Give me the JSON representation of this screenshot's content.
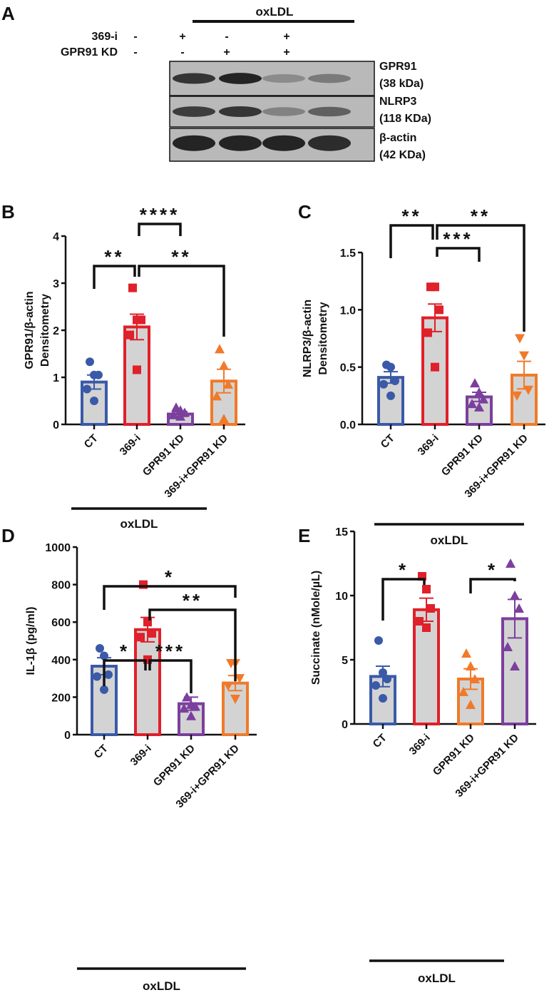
{
  "panel_a": {
    "letter": "A",
    "treatment_label": "oxLDL",
    "row_labels": [
      "369-i",
      "GPR91 KD"
    ],
    "lanes": [
      {
        "inhibitor": "-",
        "kd": "-"
      },
      {
        "inhibitor": "+",
        "kd": "-"
      },
      {
        "inhibitor": "-",
        "kd": "+"
      },
      {
        "inhibitor": "+",
        "kd": "+"
      }
    ],
    "blots": [
      {
        "name": "GPR91",
        "size": "(38 kDa)",
        "intensity": [
          0.85,
          0.95,
          0.35,
          0.45
        ]
      },
      {
        "name": "NLRP3",
        "size": "(118 KDa)",
        "intensity": [
          0.8,
          0.85,
          0.4,
          0.6
        ]
      },
      {
        "name": "β-actin",
        "size": "(42 KDa)",
        "intensity": [
          0.95,
          0.95,
          0.95,
          0.9
        ]
      }
    ]
  },
  "chart_data": [
    {
      "id": "B",
      "letter": "B",
      "type": "bar",
      "ylabel": [
        "GPR91/β-actin",
        "Densitometry"
      ],
      "ylim": [
        0,
        4
      ],
      "yticks": [
        "0",
        "1",
        "2",
        "3",
        "4"
      ],
      "ytick_values": [
        0,
        1,
        2,
        3,
        4
      ],
      "categories": [
        "CT",
        "369-i",
        "GPR91 KD",
        "369-i+GPR91 KD"
      ],
      "colors": [
        "#3a5aa8",
        "#e0202a",
        "#7b3f9e",
        "#f07a2a"
      ],
      "markers": [
        "circle",
        "square",
        "triangle",
        "triangle"
      ],
      "means": [
        0.9,
        2.07,
        0.22,
        0.92
      ],
      "sem": [
        0.15,
        0.27,
        0.05,
        0.25
      ],
      "points": [
        [
          1.33,
          1.05,
          1.05,
          0.75,
          0.5
        ],
        [
          2.9,
          2.22,
          2.22,
          1.9,
          1.16
        ],
        [
          0.36,
          0.3,
          0.25,
          0.2,
          0.17
        ],
        [
          1.6,
          1.25,
          0.85,
          0.6,
          0.12
        ]
      ],
      "comparisons": [
        {
          "a": 0,
          "b": 1,
          "label": "**"
        },
        {
          "a": 1,
          "b": 3,
          "label": "**"
        },
        {
          "a": 1,
          "b": 2,
          "label": "****"
        }
      ],
      "group_label": "oxLDL"
    },
    {
      "id": "C",
      "letter": "C",
      "type": "bar",
      "ylabel": [
        "NLRP3/β-actin",
        "Densitometry"
      ],
      "ylim": [
        0,
        1.5
      ],
      "yticks": [
        "0.0",
        "0.5",
        "1.0",
        "1.5"
      ],
      "ytick_values": [
        0,
        0.5,
        1.0,
        1.5
      ],
      "categories": [
        "CT",
        "369-i",
        "GPR91 KD",
        "369-i+GPR91 KD"
      ],
      "colors": [
        "#3a5aa8",
        "#e0202a",
        "#7b3f9e",
        "#f07a2a"
      ],
      "markers": [
        "circle",
        "square",
        "triangle",
        "triangle-down"
      ],
      "means": [
        0.41,
        0.93,
        0.24,
        0.43
      ],
      "sem": [
        0.05,
        0.12,
        0.04,
        0.12
      ],
      "points": [
        [
          0.52,
          0.5,
          0.38,
          0.35,
          0.25
        ],
        [
          1.2,
          1.2,
          1.0,
          0.8,
          0.5
        ],
        [
          0.36,
          0.28,
          0.22,
          0.18,
          0.15
        ],
        [
          0.75,
          0.6,
          0.3,
          0.25
        ]
      ],
      "comparisons": [
        {
          "a": 0,
          "b": 1,
          "label": "**"
        },
        {
          "a": 1,
          "b": 3,
          "label": "**"
        },
        {
          "a": 1,
          "b": 2,
          "label": "***"
        }
      ],
      "group_label": "oxLDL"
    },
    {
      "id": "D",
      "letter": "D",
      "type": "bar",
      "ylabel": [
        "IL-1β (pg/ml)"
      ],
      "ylim": [
        0,
        1000
      ],
      "yticks": [
        "0",
        "200",
        "400",
        "600",
        "800",
        "1000"
      ],
      "ytick_values": [
        0,
        200,
        400,
        600,
        800,
        1000
      ],
      "categories": [
        "CT",
        "369-i",
        "GPR91 KD",
        "369-i+GPR91 KD"
      ],
      "colors": [
        "#3a5aa8",
        "#e0202a",
        "#7b3f9e",
        "#f07a2a"
      ],
      "markers": [
        "circle",
        "square",
        "triangle",
        "triangle-down"
      ],
      "means": [
        365,
        560,
        165,
        275
      ],
      "sem": [
        45,
        65,
        35,
        40
      ],
      "points": [
        [
          460,
          420,
          320,
          310,
          240
        ],
        [
          800,
          600,
          540,
          520,
          400
        ],
        [
          200,
          160,
          150,
          140,
          100
        ],
        [
          380,
          380,
          300,
          260,
          190
        ]
      ],
      "comparisons": [
        {
          "a": 0,
          "b": 1,
          "label": "*"
        },
        {
          "a": 1,
          "b": 2,
          "label": "***"
        },
        {
          "a": 1,
          "b": 3,
          "label": "**"
        },
        {
          "a": 0,
          "b": 3,
          "label": "*"
        }
      ],
      "group_label": "oxLDL"
    },
    {
      "id": "E",
      "letter": "E",
      "type": "bar",
      "ylabel": [
        "Succinate (nMole/µL)"
      ],
      "ylim": [
        0,
        15
      ],
      "yticks": [
        "0",
        "5",
        "10",
        "15"
      ],
      "ytick_values": [
        0,
        5,
        10,
        15
      ],
      "categories": [
        "CT",
        "369-i",
        "GPR91 KD",
        "369-i+GPR91 KD"
      ],
      "colors": [
        "#3a5aa8",
        "#e0202a",
        "#f07a2a",
        "#7b3f9e"
      ],
      "markers": [
        "circle",
        "square",
        "triangle",
        "triangle"
      ],
      "means": [
        3.7,
        8.9,
        3.5,
        8.2
      ],
      "sem": [
        0.8,
        0.9,
        0.8,
        1.5
      ],
      "points": [
        [
          6.5,
          4.0,
          3.5,
          3.0,
          2.0
        ],
        [
          11.5,
          10.5,
          9.0,
          8.0,
          7.5
        ],
        [
          5.5,
          4.5,
          3.5,
          2.5,
          1.5
        ],
        [
          12.5,
          10.0,
          9.0,
          6.0,
          4.5
        ]
      ],
      "comparisons": [
        {
          "a": 0,
          "b": 1,
          "label": "*"
        },
        {
          "a": 2,
          "b": 3,
          "label": "*"
        }
      ],
      "group_label": "oxLDL"
    }
  ]
}
